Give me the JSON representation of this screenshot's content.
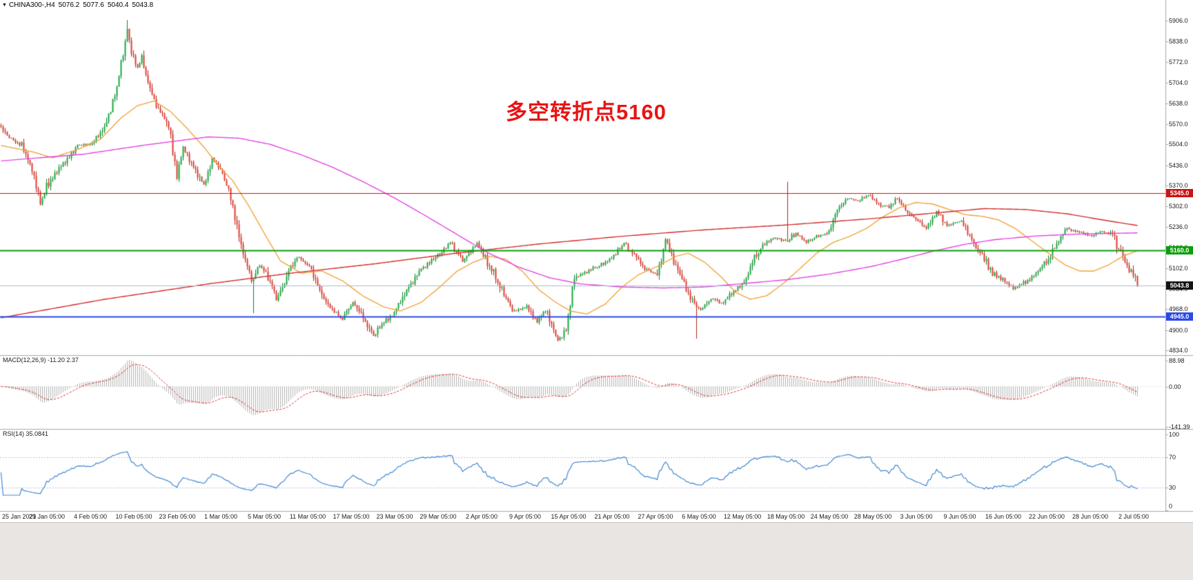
{
  "header": {
    "collapse_icon": "▼",
    "title": "CHINA300-,H4",
    "open": "5076.2",
    "high": "5077.6",
    "low": "5040.4",
    "close": "5043.8"
  },
  "annotation": {
    "text": "多空转折点5160",
    "color": "#e81414"
  },
  "price_axis": {
    "values": [
      5906,
      5838,
      5772,
      5704,
      5638,
      5570,
      5504,
      5436,
      5370,
      5302,
      5236,
      5168,
      5102,
      5034,
      4968,
      4900,
      4834
    ],
    "labels": [
      "5906.0",
      "5838.0",
      "5772.0",
      "5704.0",
      "5638.0",
      "5570.0",
      "5504.0",
      "5436.0",
      "5370.0",
      "5302.0",
      "5236.0",
      "5168.0",
      "5102.0",
      "5034.0",
      "4968.0",
      "4900.0",
      "4834.0"
    ]
  },
  "price_lines": [
    {
      "value": 5345.0,
      "label": "5345.0",
      "color": "#cc1212",
      "badge_bg": "#cc1212",
      "width": 1.2
    },
    {
      "value": 5160.0,
      "label": "5160.0",
      "color": "#0a9e0a",
      "badge_bg": "#0a9e0a",
      "width": 1.8
    },
    {
      "value": 5043.8,
      "label": "5043.8",
      "color": "#a6bccb",
      "badge_bg": "#141414",
      "width": 1.0
    },
    {
      "value": 4945.0,
      "label": "4945.0",
      "color": "#2b49e6",
      "badge_bg": "#2b49e6",
      "width": 1.8
    }
  ],
  "indicators": {
    "macd": {
      "label": "MACD(12,26,9) -11.20 2.37",
      "fast": 12,
      "slow": 26,
      "signal": 9,
      "main_value": -11.2,
      "signal_value": 2.37,
      "scale_values": [
        88.98,
        0,
        -141.39
      ],
      "scale_labels": [
        "88.98",
        "0.00",
        "-141.39"
      ],
      "histogram_color": "#b0b0b0",
      "signal_color": "#e02424"
    },
    "rsi": {
      "label": "RSI(14) 35.0841",
      "period": 14,
      "value": 35.0841,
      "scale_values": [
        100,
        70,
        30,
        0
      ],
      "scale_labels": [
        "100",
        "70",
        "30",
        "0"
      ],
      "levels": [
        70,
        30
      ],
      "line_color": "#3e86d0",
      "level_color": "#bdbdd6"
    }
  },
  "time_axis": {
    "labels": [
      "25 Jan 2021",
      "29 Jan 05:00",
      "4 Feb 05:00",
      "10 Feb 05:00",
      "23 Feb 05:00",
      "1 Mar 05:00",
      "5 Mar 05:00",
      "11 Mar 05:00",
      "17 Mar 05:00",
      "23 Mar 05:00",
      "29 Mar 05:00",
      "2 Apr 05:00",
      "9 Apr 05:00",
      "15 Apr 05:00",
      "21 Apr 05:00",
      "27 Apr 05:00",
      "6 May 05:00",
      "12 May 05:00",
      "18 May 05:00",
      "24 May 05:00",
      "28 May 05:00",
      "3 Jun 05:00",
      "9 Jun 05:00",
      "16 Jun 05:00",
      "22 Jun 05:00",
      "28 Jun 05:00",
      "2 Jul 05:00"
    ]
  },
  "chart_data": {
    "type": "candlestick",
    "title": "CHINA300- H4",
    "ylim": [
      4834,
      5906
    ],
    "x_range": [
      "25 Jan 2021",
      "2 Jul 2021"
    ],
    "candle_count": 550,
    "last_ohlc": {
      "open": 5076.2,
      "high": 5077.6,
      "low": 5040.4,
      "close": 5043.8
    },
    "horizontal_levels": [
      5345.0,
      5160.0,
      4945.0
    ],
    "bid": 5043.8,
    "up_color": "#15a83c",
    "up_border": "#0b7c2a",
    "down_color": "#e23a2e",
    "down_border": "#b02318",
    "anchors": [
      [
        0,
        5560
      ],
      [
        3,
        5530
      ],
      [
        10,
        5500
      ],
      [
        15,
        5420
      ],
      [
        19,
        5310
      ],
      [
        23,
        5380
      ],
      [
        30,
        5440
      ],
      [
        37,
        5500
      ],
      [
        44,
        5505
      ],
      [
        50,
        5560
      ],
      [
        56,
        5690
      ],
      [
        61,
        5880
      ],
      [
        63,
        5800
      ],
      [
        66,
        5750
      ],
      [
        68,
        5790
      ],
      [
        72,
        5680
      ],
      [
        76,
        5620
      ],
      [
        81,
        5570
      ],
      [
        85,
        5390
      ],
      [
        88,
        5490
      ],
      [
        93,
        5430
      ],
      [
        98,
        5370
      ],
      [
        102,
        5455
      ],
      [
        106,
        5425
      ],
      [
        111,
        5330
      ],
      [
        116,
        5170
      ],
      [
        121,
        5060
      ],
      [
        125,
        5110
      ],
      [
        129,
        5080
      ],
      [
        133,
        5000
      ],
      [
        137,
        5060
      ],
      [
        143,
        5140
      ],
      [
        149,
        5110
      ],
      [
        154,
        5030
      ],
      [
        159,
        4970
      ],
      [
        165,
        4935
      ],
      [
        170,
        4990
      ],
      [
        175,
        4945
      ],
      [
        180,
        4880
      ],
      [
        185,
        4925
      ],
      [
        191,
        4965
      ],
      [
        197,
        5040
      ],
      [
        204,
        5105
      ],
      [
        212,
        5150
      ],
      [
        217,
        5185
      ],
      [
        223,
        5125
      ],
      [
        230,
        5180
      ],
      [
        237,
        5095
      ],
      [
        243,
        5010
      ],
      [
        248,
        4960
      ],
      [
        254,
        4975
      ],
      [
        259,
        4925
      ],
      [
        263,
        4965
      ],
      [
        269,
        4865
      ],
      [
        273,
        4900
      ],
      [
        277,
        5070
      ],
      [
        283,
        5090
      ],
      [
        288,
        5105
      ],
      [
        296,
        5140
      ],
      [
        301,
        5185
      ],
      [
        305,
        5150
      ],
      [
        311,
        5100
      ],
      [
        317,
        5080
      ],
      [
        321,
        5195
      ],
      [
        325,
        5120
      ],
      [
        330,
        5050
      ],
      [
        335,
        4985
      ],
      [
        338,
        4965
      ],
      [
        343,
        5005
      ],
      [
        348,
        4985
      ],
      [
        353,
        5020
      ],
      [
        359,
        5055
      ],
      [
        363,
        5120
      ],
      [
        368,
        5175
      ],
      [
        373,
        5200
      ],
      [
        380,
        5190
      ],
      [
        384,
        5215
      ],
      [
        389,
        5185
      ],
      [
        394,
        5205
      ],
      [
        400,
        5215
      ],
      [
        404,
        5295
      ],
      [
        409,
        5330
      ],
      [
        414,
        5320
      ],
      [
        419,
        5340
      ],
      [
        424,
        5310
      ],
      [
        429,
        5300
      ],
      [
        433,
        5330
      ],
      [
        438,
        5280
      ],
      [
        443,
        5255
      ],
      [
        447,
        5230
      ],
      [
        452,
        5285
      ],
      [
        457,
        5240
      ],
      [
        464,
        5255
      ],
      [
        469,
        5190
      ],
      [
        473,
        5150
      ],
      [
        479,
        5085
      ],
      [
        485,
        5060
      ],
      [
        489,
        5035
      ],
      [
        495,
        5055
      ],
      [
        500,
        5085
      ],
      [
        506,
        5130
      ],
      [
        510,
        5180
      ],
      [
        515,
        5230
      ],
      [
        520,
        5220
      ],
      [
        527,
        5205
      ],
      [
        531,
        5222
      ],
      [
        537,
        5210
      ],
      [
        541,
        5150
      ],
      [
        546,
        5085
      ],
      [
        549,
        5043.8
      ]
    ],
    "wick_overrides": [
      [
        61,
        5908,
        "h"
      ],
      [
        122,
        4955,
        "l"
      ],
      [
        336,
        4872,
        "l"
      ],
      [
        380,
        5382,
        "h"
      ]
    ],
    "moving_averages": [
      {
        "name": "fast",
        "color": "#f0a43c",
        "anchors": [
          [
            0,
            5500
          ],
          [
            15,
            5480
          ],
          [
            25,
            5460
          ],
          [
            38,
            5490
          ],
          [
            48,
            5520
          ],
          [
            58,
            5590
          ],
          [
            66,
            5630
          ],
          [
            74,
            5645
          ],
          [
            82,
            5610
          ],
          [
            90,
            5555
          ],
          [
            98,
            5495
          ],
          [
            105,
            5435
          ],
          [
            112,
            5385
          ],
          [
            120,
            5300
          ],
          [
            128,
            5205
          ],
          [
            135,
            5125
          ],
          [
            145,
            5085
          ],
          [
            155,
            5092
          ],
          [
            165,
            5060
          ],
          [
            175,
            5010
          ],
          [
            185,
            4975
          ],
          [
            193,
            4962
          ],
          [
            203,
            4990
          ],
          [
            212,
            5040
          ],
          [
            220,
            5090
          ],
          [
            228,
            5120
          ],
          [
            236,
            5140
          ],
          [
            244,
            5130
          ],
          [
            252,
            5090
          ],
          [
            260,
            5030
          ],
          [
            268,
            4990
          ],
          [
            275,
            4962
          ],
          [
            283,
            4952
          ],
          [
            292,
            4985
          ],
          [
            300,
            5040
          ],
          [
            308,
            5080
          ],
          [
            318,
            5110
          ],
          [
            326,
            5140
          ],
          [
            332,
            5150
          ],
          [
            340,
            5120
          ],
          [
            348,
            5072
          ],
          [
            355,
            5022
          ],
          [
            362,
            5000
          ],
          [
            370,
            5012
          ],
          [
            378,
            5052
          ],
          [
            386,
            5100
          ],
          [
            394,
            5150
          ],
          [
            402,
            5185
          ],
          [
            410,
            5205
          ],
          [
            418,
            5230
          ],
          [
            426,
            5268
          ],
          [
            434,
            5298
          ],
          [
            442,
            5315
          ],
          [
            450,
            5310
          ],
          [
            458,
            5292
          ],
          [
            466,
            5275
          ],
          [
            474,
            5270
          ],
          [
            482,
            5258
          ],
          [
            490,
            5230
          ],
          [
            498,
            5190
          ],
          [
            506,
            5150
          ],
          [
            514,
            5112
          ],
          [
            521,
            5092
          ],
          [
            528,
            5092
          ],
          [
            535,
            5112
          ],
          [
            542,
            5140
          ],
          [
            549,
            5158
          ]
        ]
      },
      {
        "name": "medium",
        "color": "#e243e2",
        "anchors": [
          [
            0,
            5450
          ],
          [
            40,
            5472
          ],
          [
            70,
            5502
          ],
          [
            100,
            5528
          ],
          [
            115,
            5524
          ],
          [
            130,
            5504
          ],
          [
            145,
            5470
          ],
          [
            160,
            5430
          ],
          [
            175,
            5382
          ],
          [
            190,
            5330
          ],
          [
            205,
            5272
          ],
          [
            220,
            5212
          ],
          [
            235,
            5152
          ],
          [
            250,
            5105
          ],
          [
            265,
            5070
          ],
          [
            280,
            5050
          ],
          [
            300,
            5040
          ],
          [
            320,
            5037
          ],
          [
            340,
            5040
          ],
          [
            360,
            5052
          ],
          [
            380,
            5064
          ],
          [
            400,
            5082
          ],
          [
            420,
            5106
          ],
          [
            435,
            5130
          ],
          [
            450,
            5156
          ],
          [
            465,
            5178
          ],
          [
            480,
            5194
          ],
          [
            500,
            5206
          ],
          [
            520,
            5212
          ],
          [
            549,
            5216
          ]
        ]
      },
      {
        "name": "slow",
        "color": "#d22a2a",
        "anchors": [
          [
            0,
            4940
          ],
          [
            50,
            5000
          ],
          [
            100,
            5050
          ],
          [
            140,
            5085
          ],
          [
            180,
            5115
          ],
          [
            220,
            5150
          ],
          [
            260,
            5180
          ],
          [
            300,
            5205
          ],
          [
            340,
            5226
          ],
          [
            380,
            5242
          ],
          [
            420,
            5262
          ],
          [
            450,
            5280
          ],
          [
            475,
            5295
          ],
          [
            495,
            5292
          ],
          [
            515,
            5278
          ],
          [
            535,
            5255
          ],
          [
            549,
            5240
          ]
        ]
      }
    ]
  }
}
